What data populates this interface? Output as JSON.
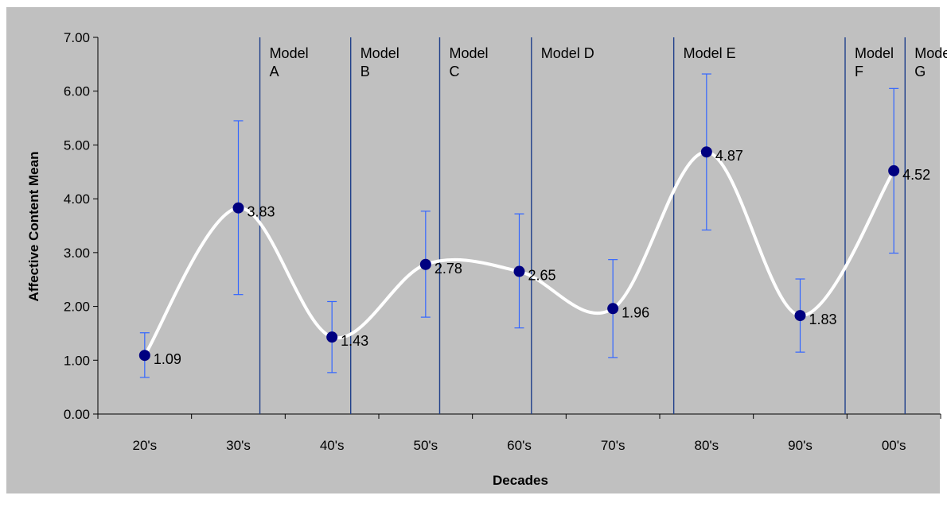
{
  "chart_data": {
    "type": "line",
    "xlabel": "Decades",
    "ylabel": "Affective Content Mean",
    "categories": [
      "20's",
      "30's",
      "40's",
      "50's",
      "60's",
      "70's",
      "80's",
      "90's",
      "00's"
    ],
    "ylim": [
      0,
      7
    ],
    "y_ticks": [
      "0.00",
      "1.00",
      "2.00",
      "3.00",
      "4.00",
      "5.00",
      "6.00",
      "7.00"
    ],
    "grid": false,
    "legend": "none",
    "series": [
      {
        "values": [
          1.09,
          3.83,
          1.43,
          2.78,
          2.65,
          1.96,
          4.87,
          1.83,
          4.52
        ],
        "data_labels": [
          "1.09",
          "3.83",
          "1.43",
          "2.78",
          "2.65",
          "1.96",
          "4.87",
          "1.83",
          "4.52"
        ],
        "error_low": [
          0.68,
          2.22,
          0.77,
          1.8,
          1.6,
          1.05,
          3.42,
          1.15,
          2.99
        ],
        "error_high": [
          1.51,
          5.45,
          2.09,
          3.77,
          3.72,
          2.87,
          6.32,
          2.51,
          6.05
        ]
      }
    ],
    "annotations": [
      {
        "x": 1.23,
        "label_lines": [
          "Model",
          "A"
        ]
      },
      {
        "x": 2.2,
        "label_lines": [
          "Model",
          "B"
        ]
      },
      {
        "x": 3.15,
        "label_lines": [
          "Model",
          "C"
        ]
      },
      {
        "x": 4.13,
        "label_lines": [
          "Model D"
        ]
      },
      {
        "x": 5.65,
        "label_lines": [
          "Model E"
        ]
      },
      {
        "x": 7.48,
        "label_lines": [
          "Model",
          "F"
        ]
      },
      {
        "x": 8.12,
        "label_lines": [
          "Model",
          "G"
        ]
      }
    ],
    "colors": {
      "plot_bg": "#c0c0c0",
      "marker": "#000080",
      "error_bar": "#3366ff",
      "curve": "#ffffff",
      "annotation_line": "#1f3f8a",
      "axis": "#000000"
    }
  }
}
